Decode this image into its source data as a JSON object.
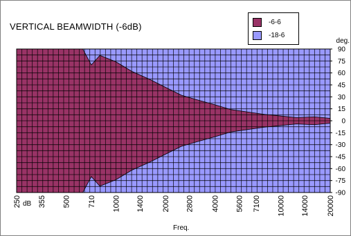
{
  "chart_data": {
    "type": "area",
    "title": "VERTICAL BEAMWIDTH (-6dB)",
    "xlabel": "Freq.",
    "x_unit": "dB",
    "ylabel": "deg.",
    "ylim": [
      -90,
      90
    ],
    "yticks": [
      90,
      75,
      60,
      45,
      30,
      15,
      0,
      -15,
      -30,
      -45,
      -60,
      -75,
      -90
    ],
    "xticks": [
      "250",
      "355",
      "500",
      "710",
      "1000",
      "1400",
      "2000",
      "2800",
      "4000",
      "5600",
      "7100",
      "10000",
      "14000",
      "20000"
    ],
    "grid": true,
    "legend_position": "top-right",
    "colors": {
      "series1": "#993366",
      "series2": "#9999ff"
    },
    "series": [
      {
        "name": "-6-6",
        "x": [
          "250",
          "315",
          "400",
          "500",
          "630",
          "710",
          "800",
          "1000",
          "1250",
          "1600",
          "2000",
          "2500",
          "3150",
          "4000",
          "5000",
          "6300",
          "8000",
          "10000",
          "12500",
          "16000",
          "20000"
        ],
        "upper": [
          90,
          90,
          90,
          90,
          90,
          70,
          82,
          74,
          62,
          52,
          42,
          32,
          26,
          20,
          14,
          11,
          8,
          6,
          4,
          5,
          3
        ],
        "lower": [
          -90,
          -90,
          -90,
          -90,
          -90,
          -70,
          -82,
          -74,
          -62,
          -52,
          -42,
          -32,
          -26,
          -20,
          -14,
          -11,
          -8,
          -6,
          -4,
          -5,
          -3
        ]
      },
      {
        "name": "-18-6",
        "x": [
          "250",
          "315",
          "400",
          "500",
          "630",
          "710",
          "800",
          "1000",
          "1250",
          "1600",
          "2000",
          "2500",
          "3150",
          "4000",
          "5000",
          "6300",
          "8000",
          "10000",
          "12500",
          "16000",
          "20000"
        ],
        "upper": [
          90,
          90,
          90,
          90,
          90,
          90,
          90,
          90,
          90,
          90,
          90,
          90,
          90,
          90,
          90,
          90,
          90,
          90,
          90,
          90,
          90
        ],
        "lower": [
          -90,
          -90,
          -90,
          -90,
          -90,
          -90,
          -90,
          -90,
          -90,
          -90,
          -90,
          -90,
          -90,
          -90,
          -90,
          -90,
          -90,
          -90,
          -90,
          -90,
          -90
        ]
      }
    ]
  }
}
